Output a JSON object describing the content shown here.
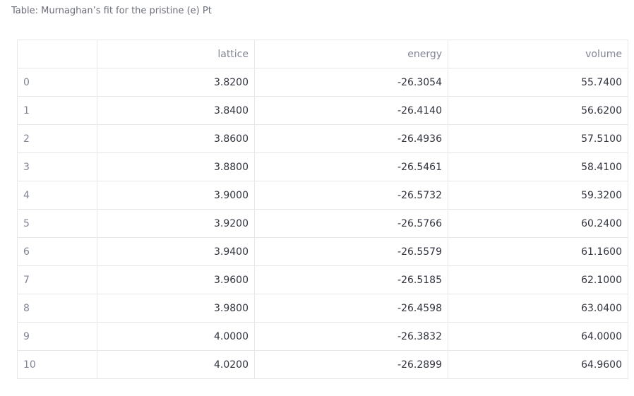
{
  "caption": "Table: Murnaghan’s fit for the pristine (e) Pt",
  "table": {
    "headers": [
      "",
      "lattice",
      "energy",
      "volume"
    ],
    "rows": [
      {
        "index": "0",
        "lattice": "3.8200",
        "energy": "-26.3054",
        "volume": "55.7400"
      },
      {
        "index": "1",
        "lattice": "3.8400",
        "energy": "-26.4140",
        "volume": "56.6200"
      },
      {
        "index": "2",
        "lattice": "3.8600",
        "energy": "-26.4936",
        "volume": "57.5100"
      },
      {
        "index": "3",
        "lattice": "3.8800",
        "energy": "-26.5461",
        "volume": "58.4100"
      },
      {
        "index": "4",
        "lattice": "3.9000",
        "energy": "-26.5732",
        "volume": "59.3200"
      },
      {
        "index": "5",
        "lattice": "3.9200",
        "energy": "-26.5766",
        "volume": "60.2400"
      },
      {
        "index": "6",
        "lattice": "3.9400",
        "energy": "-26.5579",
        "volume": "61.1600"
      },
      {
        "index": "7",
        "lattice": "3.9600",
        "energy": "-26.5185",
        "volume": "62.1000"
      },
      {
        "index": "8",
        "lattice": "3.9800",
        "energy": "-26.4598",
        "volume": "63.0400"
      },
      {
        "index": "9",
        "lattice": "4.0000",
        "energy": "-26.3832",
        "volume": "64.0000"
      },
      {
        "index": "10",
        "lattice": "4.0200",
        "energy": "-26.2899",
        "volume": "64.9600"
      }
    ]
  }
}
